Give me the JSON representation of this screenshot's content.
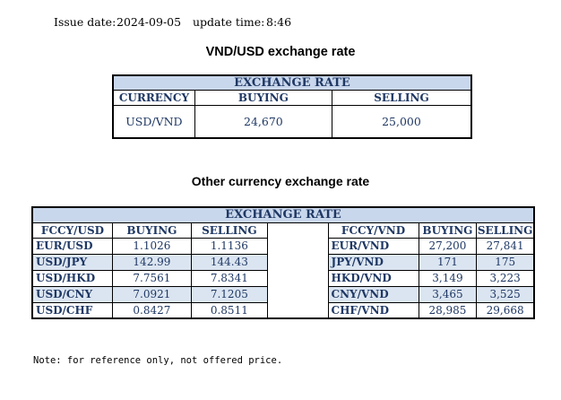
{
  "header": {
    "issue_label": "Issue date:",
    "issue_date": "2024-09-05",
    "update_label": "update time:",
    "update_time": "8:46"
  },
  "vnd_usd": {
    "title": "VND/USD exchange rate",
    "table_header": "EXCHANGE RATE",
    "col_currency": "CURRENCY",
    "col_buying": "BUYING",
    "col_selling": "SELLING",
    "row": {
      "currency": "USD/VND",
      "buying": "24,670",
      "selling": "25,000"
    }
  },
  "other": {
    "title": "Other currency exchange rate",
    "table_header": "EXCHANGE  RATE",
    "left_cols": {
      "pair": "FCCY/USD",
      "buying": "BUYING",
      "selling": "SELLING"
    },
    "right_cols": {
      "pair": "FCCY/VND",
      "buying": "BUYING",
      "selling": "SELLING"
    },
    "rows": [
      {
        "l_pair": "EUR/USD",
        "l_buy": "1.1026",
        "l_sell": "1.1136",
        "r_pair": "EUR/VND",
        "r_buy": "27,200",
        "r_sell": "27,841"
      },
      {
        "l_pair": "USD/JPY",
        "l_buy": "142.99",
        "l_sell": "144.43",
        "r_pair": "JPY/VND",
        "r_buy": "171",
        "r_sell": "175"
      },
      {
        "l_pair": "USD/HKD",
        "l_buy": "7.7561",
        "l_sell": "7.8341",
        "r_pair": "HKD/VND",
        "r_buy": "3,149",
        "r_sell": "3,223"
      },
      {
        "l_pair": "USD/CNY",
        "l_buy": "7.0921",
        "l_sell": "7.1205",
        "r_pair": "CNY/VND",
        "r_buy": "3,465",
        "r_sell": "3,525"
      },
      {
        "l_pair": "USD/CHF",
        "l_buy": "0.8427",
        "l_sell": "0.8511",
        "r_pair": "CHF/VND",
        "r_buy": "28,985",
        "r_sell": "29,668"
      }
    ]
  },
  "note": "Note: for reference only, not offered price."
}
